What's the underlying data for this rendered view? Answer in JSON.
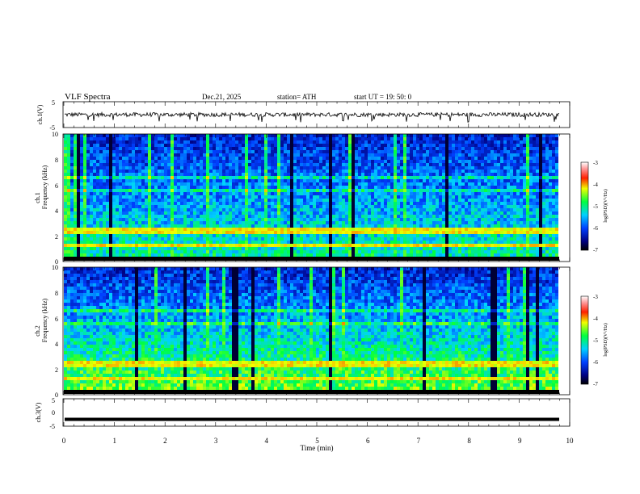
{
  "header": {
    "title": "VLF  Spectra",
    "date": "Dec.21, 2025",
    "station": "station= ATH",
    "start": "start  UT  =    19: 50: 0"
  },
  "colors": {
    "background": "#ffffff",
    "trace": "#000000",
    "spectrogram_low": "#000080",
    "spectrogram_high": "#ff0000"
  },
  "chart_data": [
    {
      "type": "line",
      "panel": "ch1",
      "ylabel": "ch.1(V)",
      "ylim": [
        -5,
        5
      ],
      "yticks": [
        "5",
        "-5"
      ],
      "xlim": [
        0,
        10
      ],
      "description_of_series": "broadband noise around ~0 V with amplitude about +/-1 V"
    },
    {
      "type": "heatmap",
      "panel": "ch1-spectrogram",
      "title": "ch.1",
      "ylabel": "Frequency  (kHz)",
      "ylim": [
        0,
        10
      ],
      "yticks": [
        "0",
        "2",
        "4",
        "6",
        "8",
        "10"
      ],
      "xlim": [
        0,
        10
      ],
      "colorbar": {
        "label": "log(PSD)(V²/Hz)",
        "range": [
          -7,
          -3
        ],
        "ticks": [
          "-3",
          "-4",
          "-5",
          "-6",
          "-7"
        ]
      }
    },
    {
      "type": "heatmap",
      "panel": "ch2-spectrogram",
      "title": "ch.2",
      "ylabel": "Frequency  (kHz)",
      "ylim": [
        0,
        10
      ],
      "yticks": [
        "0",
        "2",
        "4",
        "6",
        "8",
        "10"
      ],
      "xlim": [
        0,
        10
      ],
      "colorbar": {
        "label": "log(PSD)(V²/Hz)",
        "range": [
          -7,
          -3
        ],
        "ticks": [
          "-3",
          "-4",
          "-5",
          "-6",
          "-7"
        ]
      }
    },
    {
      "type": "line",
      "panel": "ch3",
      "ylabel": "ch.3(V)",
      "ylim": [
        -5,
        5
      ],
      "yticks": [
        "5",
        "0",
        "-5"
      ],
      "xlim": [
        0,
        10
      ],
      "description_of_series": "flat thick trace at about -2.5 V"
    }
  ],
  "xaxis": {
    "label": "Time  (min)",
    "ticks": [
      "0",
      "1",
      "2",
      "3",
      "4",
      "5",
      "6",
      "7",
      "8",
      "9",
      "10"
    ]
  }
}
